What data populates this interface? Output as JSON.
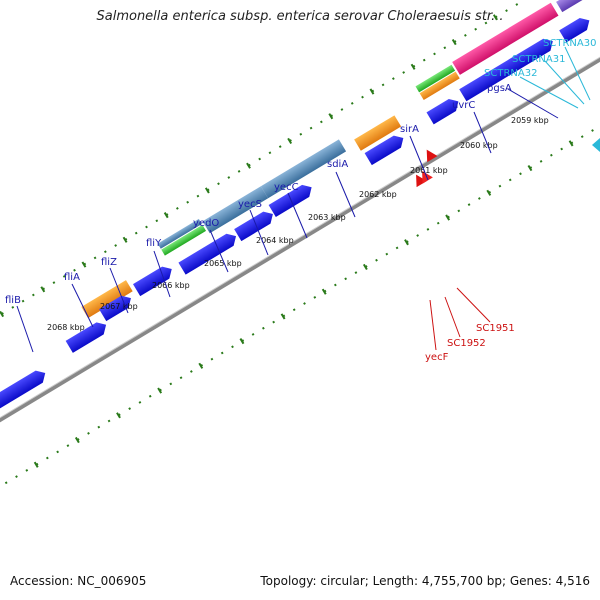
{
  "title": "Salmonella enterica subsp. enterica serovar Choleraesuis str...",
  "footer": {
    "accession": "Accession: NC_006905",
    "summary": "Topology: circular; Length: 4,755,700 bp; Genes: 4,516"
  },
  "colors": {
    "backbone": "#777777",
    "tick": "#2a7a1a",
    "cds": "#1414e0",
    "gene_label": "#1a1aaa",
    "rna_label": "#cc1111",
    "trna_label": "#2ab8d8"
  },
  "kbp_ticks": [
    "2059 kbp",
    "2060 kbp",
    "2061 kbp",
    "2062 kbp",
    "2063 kbp",
    "2064 kbp",
    "2065 kbp",
    "2066 kbp",
    "2067 kbp",
    "2068 kbp"
  ],
  "upper_labels": [
    "fliB",
    "fliA",
    "fliZ",
    "fliY",
    "yedO",
    "yecS",
    "yecC",
    "sdiA",
    "sirA",
    "uvrC",
    "pgsA"
  ],
  "trna_labels": [
    "SCTRNA30",
    "SCTRNA31",
    "SCTRNA32"
  ],
  "lower_labels": [
    "SC1951",
    "SC1952",
    "yecF"
  ]
}
